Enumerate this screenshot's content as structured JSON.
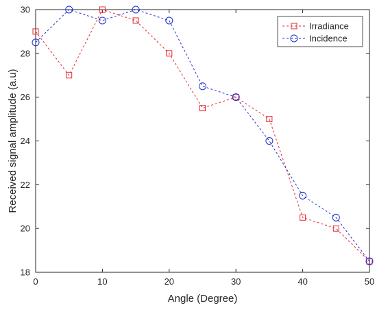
{
  "chart_data": {
    "type": "line",
    "xlabel": "Angle (Degree)",
    "ylabel": "Received signal amplitude (a.u)",
    "xlim": [
      0,
      50
    ],
    "ylim": [
      18,
      30
    ],
    "x_ticks": [
      0,
      10,
      20,
      30,
      40,
      50
    ],
    "y_ticks": [
      18,
      20,
      22,
      24,
      26,
      28,
      30
    ],
    "x_tick_labels": [
      "0",
      "10",
      "20",
      "30",
      "40",
      "50"
    ],
    "y_tick_labels": [
      "18",
      "20",
      "22",
      "24",
      "26",
      "28",
      "30"
    ],
    "grid": false,
    "legend_position": "top-right",
    "x": [
      0,
      5,
      10,
      15,
      20,
      25,
      30,
      35,
      40,
      45,
      50
    ],
    "series": [
      {
        "name": "Irradiance",
        "color": "#e8262d",
        "marker": "square",
        "line_style": "dashed",
        "values": [
          29,
          27,
          30,
          29.5,
          28,
          25.5,
          26,
          25,
          20.5,
          20,
          18.5
        ]
      },
      {
        "name": "Incidence",
        "color": "#1f2fd1",
        "marker": "circle",
        "line_style": "dashed",
        "values": [
          28.5,
          30,
          29.5,
          30,
          29.5,
          26.5,
          26,
          24,
          21.5,
          20.5,
          18.5
        ]
      }
    ]
  }
}
